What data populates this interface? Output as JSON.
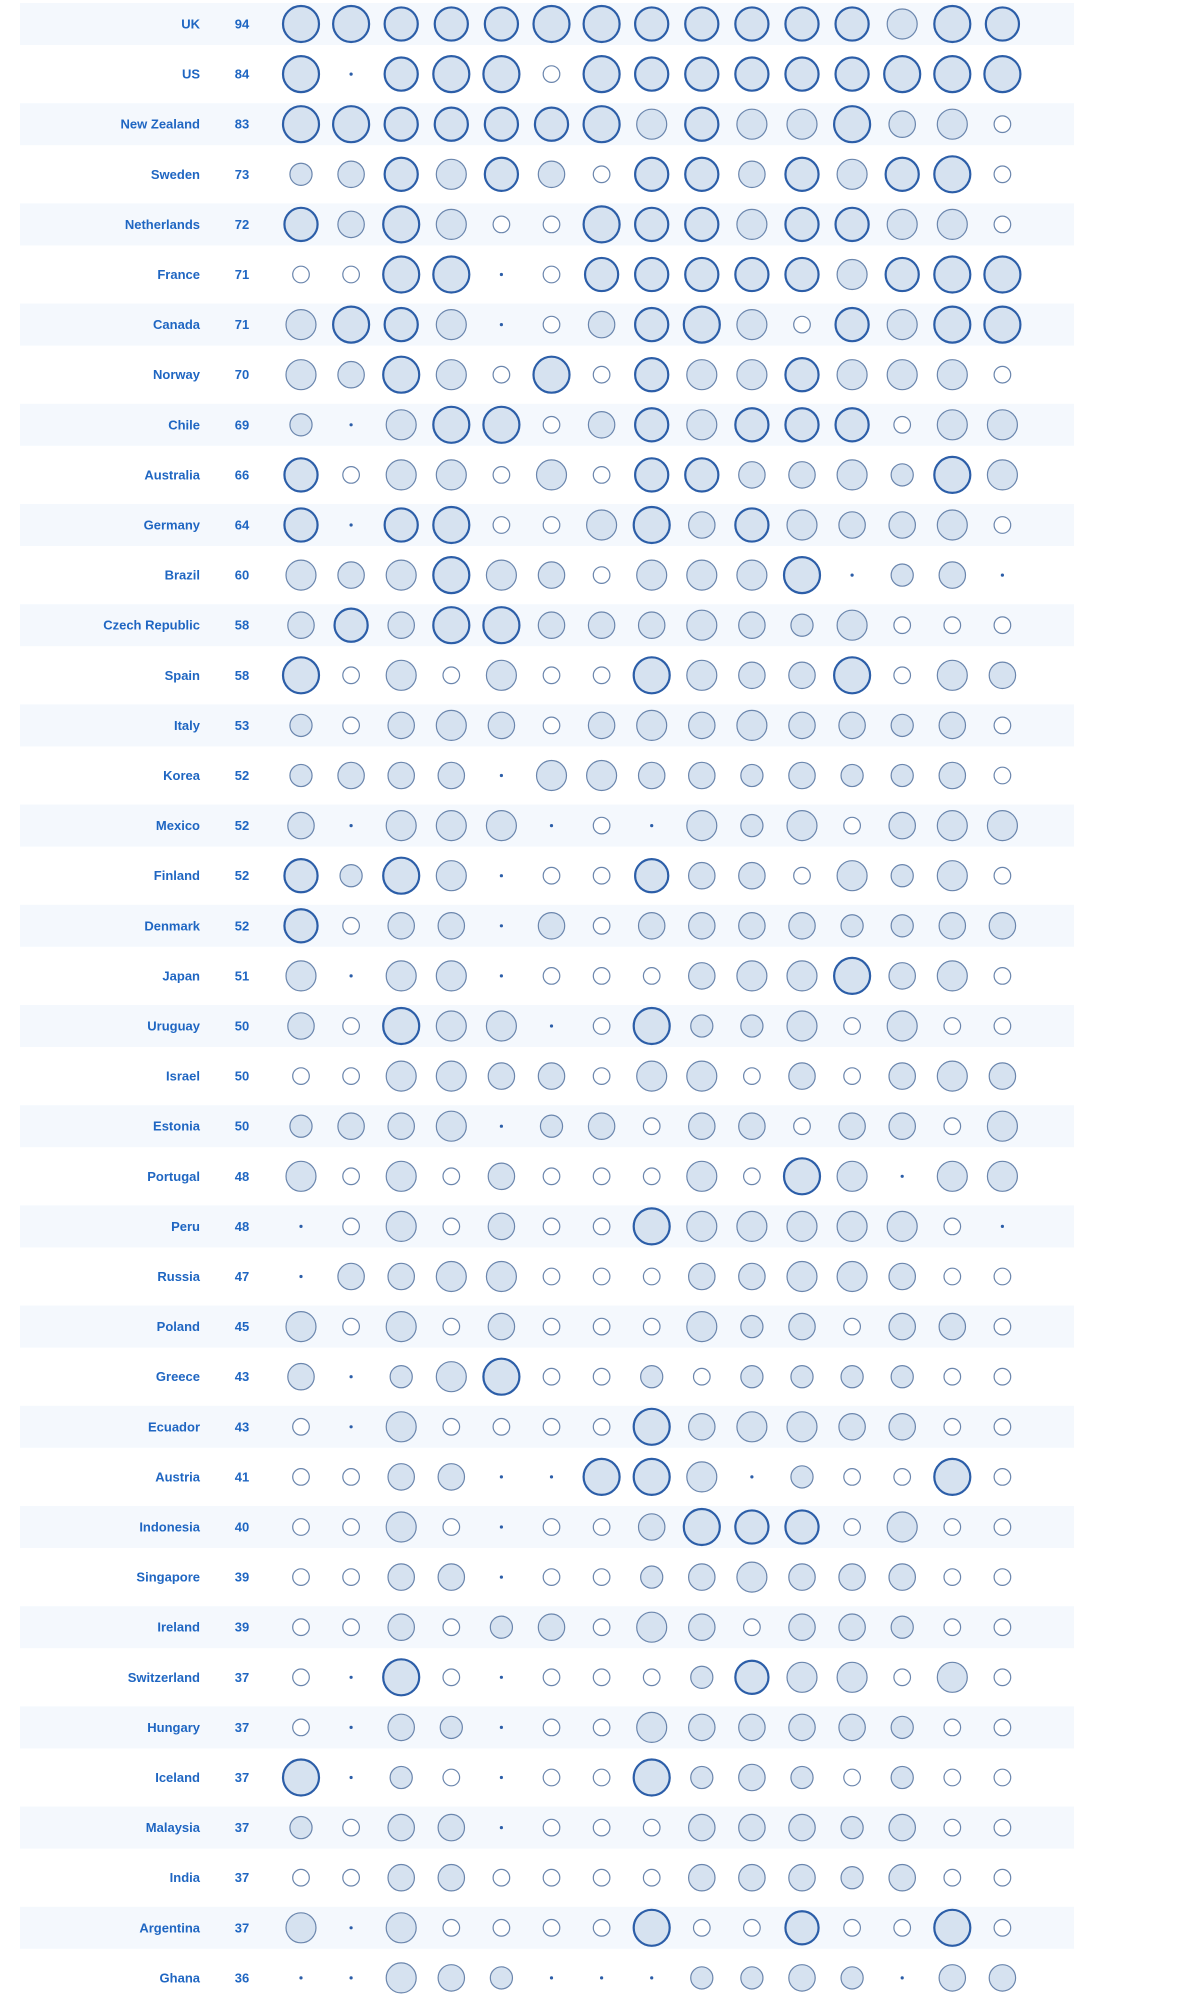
{
  "chart_data": {
    "type": "bubble-matrix",
    "value_scale": [
      0,
      3
    ],
    "colors": {
      "row_band": "#f4f8fd",
      "label": "#1f66c2",
      "bubble_fill": "#d6e2f0",
      "bubble_stroke_light": "#6b86ad",
      "bubble_stroke_dark": "#2c5ea8"
    },
    "rows": [
      {
        "country": "UK",
        "score": "94",
        "values": [
          3,
          3,
          2.5,
          2.5,
          2.5,
          3,
          3,
          2.5,
          2.5,
          2.5,
          2.5,
          2.5,
          2,
          3,
          2.5
        ]
      },
      {
        "country": "US",
        "score": "84",
        "values": [
          3,
          0,
          2.5,
          3,
          3,
          0.5,
          3,
          2.5,
          2.5,
          2.5,
          2.5,
          2.5,
          3,
          3,
          3
        ]
      },
      {
        "country": "New Zealand",
        "score": "83",
        "values": [
          3,
          3,
          2.5,
          2.5,
          2.5,
          2.5,
          3,
          2,
          2.5,
          2,
          2,
          3,
          1.5,
          2,
          0.5
        ]
      },
      {
        "country": "Sweden",
        "score": "73",
        "values": [
          1,
          1.5,
          2.5,
          2,
          2.5,
          1.5,
          0.5,
          2.5,
          2.5,
          1.5,
          2.5,
          2,
          2.5,
          3,
          0.5
        ]
      },
      {
        "country": "Netherlands",
        "score": "72",
        "values": [
          2.5,
          1.5,
          3,
          2,
          0.5,
          0.5,
          3,
          2.5,
          2.5,
          2,
          2.5,
          2.5,
          2,
          2,
          0.5
        ]
      },
      {
        "country": "France",
        "score": "71",
        "values": [
          0.5,
          0.5,
          3,
          3,
          0,
          0.5,
          2.5,
          2.5,
          2.5,
          2.5,
          2.5,
          2,
          2.5,
          3,
          3
        ]
      },
      {
        "country": "Canada",
        "score": "71",
        "values": [
          2,
          3,
          2.5,
          2,
          0,
          0.5,
          1.5,
          2.5,
          3,
          2,
          0.5,
          2.5,
          2,
          3,
          3
        ]
      },
      {
        "country": "Norway",
        "score": "70",
        "values": [
          2,
          1.5,
          3,
          2,
          0.5,
          3,
          0.5,
          2.5,
          2,
          2,
          2.5,
          2,
          2,
          2,
          0.5
        ]
      },
      {
        "country": "Chile",
        "score": "69",
        "values": [
          1,
          0,
          2,
          3,
          3,
          0.5,
          1.5,
          2.5,
          2,
          2.5,
          2.5,
          2.5,
          0.5,
          2,
          2
        ]
      },
      {
        "country": "Australia",
        "score": "66",
        "values": [
          2.5,
          0.5,
          2,
          2,
          0.5,
          2,
          0.5,
          2.5,
          2.5,
          1.5,
          1.5,
          2,
          1,
          3,
          2
        ]
      },
      {
        "country": "Germany",
        "score": "64",
        "values": [
          2.5,
          0,
          2.5,
          3,
          0.5,
          0.5,
          2,
          3,
          1.5,
          2.5,
          2,
          1.5,
          1.5,
          2,
          0.5
        ]
      },
      {
        "country": "Brazil",
        "score": "60",
        "values": [
          2,
          1.5,
          2,
          3,
          2,
          1.5,
          0.5,
          2,
          2,
          2,
          3,
          0,
          1,
          1.5,
          0
        ]
      },
      {
        "country": "Czech Republic",
        "score": "58",
        "values": [
          1.5,
          2.5,
          1.5,
          3,
          3,
          1.5,
          1.5,
          1.5,
          2,
          1.5,
          1,
          2,
          0.5,
          0.5,
          0.5
        ]
      },
      {
        "country": "Spain",
        "score": "58",
        "values": [
          3,
          0.5,
          2,
          0.5,
          2,
          0.5,
          0.5,
          3,
          2,
          1.5,
          1.5,
          3,
          0.5,
          2,
          1.5
        ]
      },
      {
        "country": "Italy",
        "score": "53",
        "values": [
          1,
          0.5,
          1.5,
          2,
          1.5,
          0.5,
          1.5,
          2,
          1.5,
          2,
          1.5,
          1.5,
          1,
          1.5,
          0.5
        ]
      },
      {
        "country": "Korea",
        "score": "52",
        "values": [
          1,
          1.5,
          1.5,
          1.5,
          0,
          2,
          2,
          1.5,
          1.5,
          1,
          1.5,
          1,
          1,
          1.5,
          0.5
        ]
      },
      {
        "country": "Mexico",
        "score": "52",
        "values": [
          1.5,
          0,
          2,
          2,
          2,
          0,
          0.5,
          0,
          2,
          1,
          2,
          0.5,
          1.5,
          2,
          2
        ]
      },
      {
        "country": "Finland",
        "score": "52",
        "values": [
          2.5,
          1,
          3,
          2,
          0,
          0.5,
          0.5,
          2.5,
          1.5,
          1.5,
          0.5,
          2,
          1,
          2,
          0.5
        ]
      },
      {
        "country": "Denmark",
        "score": "52",
        "values": [
          2.5,
          0.5,
          1.5,
          1.5,
          0,
          1.5,
          0.5,
          1.5,
          1.5,
          1.5,
          1.5,
          1,
          1,
          1.5,
          1.5
        ]
      },
      {
        "country": "Japan",
        "score": "51",
        "values": [
          2,
          0,
          2,
          2,
          0,
          0.5,
          0.5,
          0.5,
          1.5,
          2,
          2,
          3,
          1.5,
          2,
          0.5
        ]
      },
      {
        "country": "Uruguay",
        "score": "50",
        "values": [
          1.5,
          0.5,
          3,
          2,
          2,
          0,
          0.5,
          3,
          1,
          1,
          2,
          0.5,
          2,
          0.5,
          0.5
        ]
      },
      {
        "country": "Israel",
        "score": "50",
        "values": [
          0.5,
          0.5,
          2,
          2,
          1.5,
          1.5,
          0.5,
          2,
          2,
          0.5,
          1.5,
          0.5,
          1.5,
          2,
          1.5
        ]
      },
      {
        "country": "Estonia",
        "score": "50",
        "values": [
          1,
          1.5,
          1.5,
          2,
          0,
          1,
          1.5,
          0.5,
          1.5,
          1.5,
          0.5,
          1.5,
          1.5,
          0.5,
          2
        ]
      },
      {
        "country": "Portugal",
        "score": "48",
        "values": [
          2,
          0.5,
          2,
          0.5,
          1.5,
          0.5,
          0.5,
          0.5,
          2,
          0.5,
          3,
          2,
          0,
          2,
          2
        ]
      },
      {
        "country": "Peru",
        "score": "48",
        "values": [
          0,
          0.5,
          2,
          0.5,
          1.5,
          0.5,
          0.5,
          3,
          2,
          2,
          2,
          2,
          2,
          0.5,
          0
        ]
      },
      {
        "country": "Russia",
        "score": "47",
        "values": [
          0,
          1.5,
          1.5,
          2,
          2,
          0.5,
          0.5,
          0.5,
          1.5,
          1.5,
          2,
          2,
          1.5,
          0.5,
          0.5
        ]
      },
      {
        "country": "Poland",
        "score": "45",
        "values": [
          2,
          0.5,
          2,
          0.5,
          1.5,
          0.5,
          0.5,
          0.5,
          2,
          1,
          1.5,
          0.5,
          1.5,
          1.5,
          0.5
        ]
      },
      {
        "country": "Greece",
        "score": "43",
        "values": [
          1.5,
          0,
          1,
          2,
          3,
          0.5,
          0.5,
          1,
          0.5,
          1,
          1,
          1,
          1,
          0.5,
          0.5
        ]
      },
      {
        "country": "Ecuador",
        "score": "43",
        "values": [
          0.5,
          0,
          2,
          0.5,
          0.5,
          0.5,
          0.5,
          3,
          1.5,
          2,
          2,
          1.5,
          1.5,
          0.5,
          0.5
        ]
      },
      {
        "country": "Austria",
        "score": "41",
        "values": [
          0.5,
          0.5,
          1.5,
          1.5,
          0,
          0,
          3,
          3,
          2,
          0,
          1,
          0.5,
          0.5,
          3,
          0.5
        ]
      },
      {
        "country": "Indonesia",
        "score": "40",
        "values": [
          0.5,
          0.5,
          2,
          0.5,
          0,
          0.5,
          0.5,
          1.5,
          3,
          2.5,
          2.5,
          0.5,
          2,
          0.5,
          0.5
        ]
      },
      {
        "country": "Singapore",
        "score": "39",
        "values": [
          0.5,
          0.5,
          1.5,
          1.5,
          0,
          0.5,
          0.5,
          1,
          1.5,
          2,
          1.5,
          1.5,
          1.5,
          0.5,
          0.5
        ]
      },
      {
        "country": "Ireland",
        "score": "39",
        "values": [
          0.5,
          0.5,
          1.5,
          0.5,
          1,
          1.5,
          0.5,
          2,
          1.5,
          0.5,
          1.5,
          1.5,
          1,
          0.5,
          0.5
        ]
      },
      {
        "country": "Switzerland",
        "score": "37",
        "values": [
          0.5,
          0,
          3,
          0.5,
          0,
          0.5,
          0.5,
          0.5,
          1,
          2.5,
          2,
          2,
          0.5,
          2,
          0.5
        ]
      },
      {
        "country": "Hungary",
        "score": "37",
        "values": [
          0.5,
          0,
          1.5,
          1,
          0,
          0.5,
          0.5,
          2,
          1.5,
          1.5,
          1.5,
          1.5,
          1,
          0.5,
          0.5
        ]
      },
      {
        "country": "Iceland",
        "score": "37",
        "values": [
          3,
          0,
          1,
          0.5,
          0,
          0.5,
          0.5,
          3,
          1,
          1.5,
          1,
          0.5,
          1,
          0.5,
          0.5
        ]
      },
      {
        "country": "Malaysia",
        "score": "37",
        "values": [
          1,
          0.5,
          1.5,
          1.5,
          0,
          0.5,
          0.5,
          0.5,
          1.5,
          1.5,
          1.5,
          1,
          1.5,
          0.5,
          0.5
        ]
      },
      {
        "country": "India",
        "score": "37",
        "values": [
          0.5,
          0.5,
          1.5,
          1.5,
          0.5,
          0.5,
          0.5,
          0.5,
          1.5,
          1.5,
          1.5,
          1,
          1.5,
          0.5,
          0.5
        ]
      },
      {
        "country": "Argentina",
        "score": "37",
        "values": [
          2,
          0,
          2,
          0.5,
          0.5,
          0.5,
          0.5,
          3,
          0.5,
          0.5,
          2.5,
          0.5,
          0.5,
          3,
          0.5
        ]
      },
      {
        "country": "Ghana",
        "score": "36",
        "values": [
          0,
          0,
          2,
          1.5,
          1,
          0,
          0,
          0,
          1,
          1,
          1.5,
          1,
          0,
          1.5,
          1.5
        ]
      }
    ]
  }
}
